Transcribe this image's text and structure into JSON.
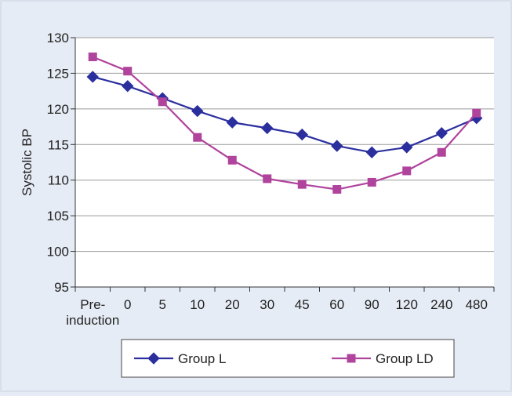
{
  "chart_data": {
    "type": "line",
    "categories": [
      "Pre-\ninduction",
      "0",
      "5",
      "10",
      "20",
      "30",
      "45",
      "60",
      "90",
      "120",
      "240",
      "480"
    ],
    "ylabel": "Systolic BP",
    "xlabel": "",
    "ylim": [
      95,
      130
    ],
    "yticks": [
      95,
      100,
      105,
      110,
      115,
      120,
      125,
      130
    ],
    "grid": "horizontal",
    "legend_position": "bottom",
    "series": [
      {
        "name": "Group L",
        "color": "#2b2f9e",
        "marker": "diamond",
        "values": [
          124.5,
          123.2,
          121.5,
          119.7,
          118.1,
          117.3,
          116.4,
          114.8,
          113.9,
          114.6,
          116.6,
          118.7
        ]
      },
      {
        "name": "Group LD",
        "color": "#b0439c",
        "marker": "square",
        "values": [
          127.3,
          125.3,
          121.0,
          116.0,
          112.8,
          110.2,
          109.4,
          108.7,
          109.7,
          111.3,
          113.9,
          119.4
        ]
      }
    ]
  }
}
